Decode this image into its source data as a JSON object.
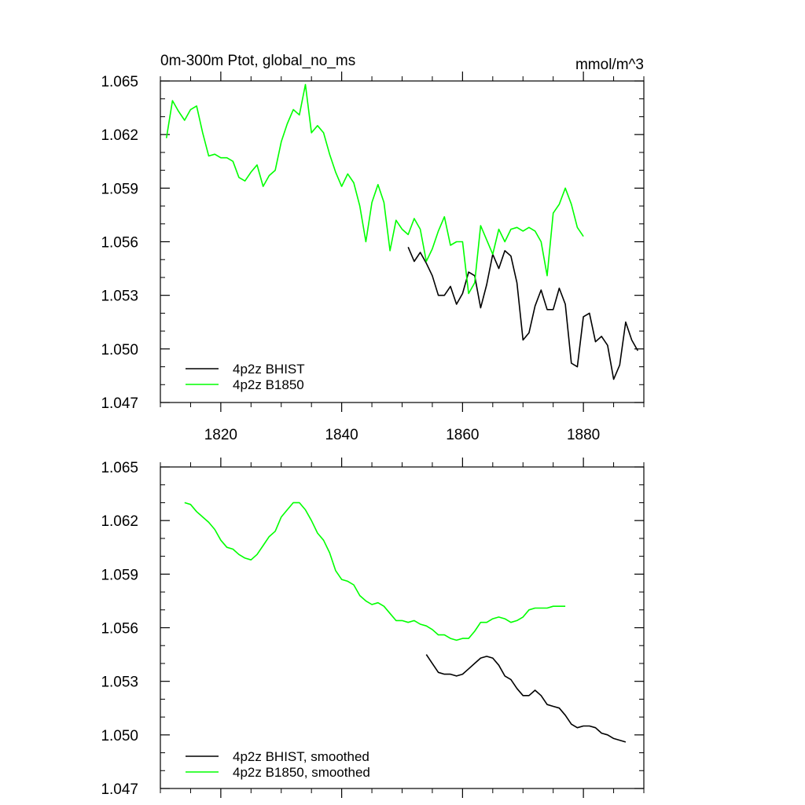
{
  "chart_data": [
    {
      "type": "line",
      "title": "0m-300m Ptot, global_no_ms",
      "units": "mmol/m^3",
      "xlim": [
        1810,
        1890
      ],
      "ylim": [
        1.047,
        1.065
      ],
      "yticks": [
        "1.047",
        "1.050",
        "1.053",
        "1.056",
        "1.059",
        "1.062",
        "1.065"
      ],
      "xticks": [
        "1820",
        "1840",
        "1860",
        "1880"
      ],
      "legend_position": "bottom-left",
      "series": [
        {
          "name": "4p2z BHIST",
          "color": "#000000",
          "x": [
            1851,
            1852,
            1853,
            1854,
            1855,
            1856,
            1857,
            1858,
            1859,
            1860,
            1861,
            1862,
            1863,
            1864,
            1865,
            1866,
            1867,
            1868,
            1869,
            1870,
            1871,
            1872,
            1873,
            1874,
            1875,
            1876,
            1877,
            1878,
            1879,
            1880,
            1881,
            1882,
            1883,
            1884,
            1885,
            1886,
            1887,
            1888,
            1889
          ],
          "y": [
            1.0557,
            1.0549,
            1.0554,
            1.0548,
            1.0541,
            1.053,
            1.053,
            1.0535,
            1.0525,
            1.0531,
            1.0543,
            1.0541,
            1.0523,
            1.0536,
            1.0553,
            1.0545,
            1.0555,
            1.0552,
            1.0537,
            1.0505,
            1.0509,
            1.0524,
            1.0533,
            1.0522,
            1.0522,
            1.0534,
            1.0525,
            1.0492,
            1.049,
            1.0518,
            1.052,
            1.0504,
            1.0507,
            1.0502,
            1.0483,
            1.0491,
            1.0515,
            1.0505,
            1.0499
          ]
        },
        {
          "name": "4p2z B1850",
          "color": "#00ff00",
          "x": [
            1811,
            1812,
            1813,
            1814,
            1815,
            1816,
            1817,
            1818,
            1819,
            1820,
            1821,
            1822,
            1823,
            1824,
            1825,
            1826,
            1827,
            1828,
            1829,
            1830,
            1831,
            1832,
            1833,
            1834,
            1835,
            1836,
            1837,
            1838,
            1839,
            1840,
            1841,
            1842,
            1843,
            1844,
            1845,
            1846,
            1847,
            1848,
            1849,
            1850,
            1851,
            1852,
            1853,
            1854,
            1855,
            1856,
            1857,
            1858,
            1859,
            1860,
            1861,
            1862,
            1863,
            1864,
            1865,
            1866,
            1867,
            1868,
            1869,
            1870,
            1871,
            1872,
            1873,
            1874,
            1875,
            1876,
            1877,
            1878,
            1879,
            1880
          ],
          "y": [
            1.0618,
            1.0639,
            1.0633,
            1.0628,
            1.0634,
            1.0636,
            1.0621,
            1.0608,
            1.0609,
            1.0607,
            1.0607,
            1.0605,
            1.0596,
            1.0594,
            1.0599,
            1.0603,
            1.0591,
            1.0597,
            1.06,
            1.0616,
            1.0626,
            1.0634,
            1.0631,
            1.0648,
            1.0621,
            1.0625,
            1.0621,
            1.0609,
            1.0599,
            1.0591,
            1.0598,
            1.0593,
            1.058,
            1.056,
            1.0582,
            1.0592,
            1.0582,
            1.0555,
            1.0572,
            1.0567,
            1.0564,
            1.0573,
            1.0567,
            1.0549,
            1.0556,
            1.0566,
            1.0574,
            1.0558,
            1.056,
            1.056,
            1.0531,
            1.0537,
            1.0569,
            1.0561,
            1.0553,
            1.0567,
            1.056,
            1.0567,
            1.0568,
            1.0566,
            1.0568,
            1.0566,
            1.056,
            1.0541,
            1.0576,
            1.0581,
            1.059,
            1.0581,
            1.0568,
            1.0563
          ]
        }
      ]
    },
    {
      "type": "line",
      "title": "",
      "xlim": [
        1810,
        1890
      ],
      "ylim": [
        1.047,
        1.065
      ],
      "yticks": [
        "1.047",
        "1.050",
        "1.053",
        "1.056",
        "1.059",
        "1.062",
        "1.065"
      ],
      "xticks": [],
      "legend_position": "bottom-left",
      "series": [
        {
          "name": "4p2z BHIST, smoothed",
          "color": "#000000",
          "x": [
            1854,
            1855,
            1856,
            1857,
            1858,
            1859,
            1860,
            1861,
            1862,
            1863,
            1864,
            1865,
            1866,
            1867,
            1868,
            1869,
            1870,
            1871,
            1872,
            1873,
            1874,
            1875,
            1876,
            1877,
            1878,
            1879,
            1880,
            1881,
            1882,
            1883,
            1884,
            1885,
            1886,
            1887
          ],
          "y": [
            1.0545,
            1.054,
            1.0535,
            1.0534,
            1.0534,
            1.0533,
            1.0534,
            1.0537,
            1.054,
            1.0543,
            1.0544,
            1.0543,
            1.0539,
            1.0533,
            1.0531,
            1.0526,
            1.0522,
            1.0522,
            1.0525,
            1.0522,
            1.0517,
            1.0516,
            1.0515,
            1.0511,
            1.0506,
            1.0504,
            1.0505,
            1.0505,
            1.0504,
            1.0501,
            1.05,
            1.0498,
            1.0497,
            1.0496
          ]
        },
        {
          "name": "4p2z B1850, smoothed",
          "color": "#00ff00",
          "x": [
            1814,
            1815,
            1816,
            1817,
            1818,
            1819,
            1820,
            1821,
            1822,
            1823,
            1824,
            1825,
            1826,
            1827,
            1828,
            1829,
            1830,
            1831,
            1832,
            1833,
            1834,
            1835,
            1836,
            1837,
            1838,
            1839,
            1840,
            1841,
            1842,
            1843,
            1844,
            1845,
            1846,
            1847,
            1848,
            1849,
            1850,
            1851,
            1852,
            1853,
            1854,
            1855,
            1856,
            1857,
            1858,
            1859,
            1860,
            1861,
            1862,
            1863,
            1864,
            1865,
            1866,
            1867,
            1868,
            1869,
            1870,
            1871,
            1872,
            1873,
            1874,
            1875,
            1876,
            1877
          ],
          "y": [
            1.063,
            1.0629,
            1.0625,
            1.0622,
            1.0619,
            1.0615,
            1.0609,
            1.0605,
            1.0604,
            1.0601,
            1.0599,
            1.0598,
            1.0601,
            1.0606,
            1.0611,
            1.0614,
            1.0622,
            1.0626,
            1.063,
            1.063,
            1.0626,
            1.062,
            1.0613,
            1.0609,
            1.0602,
            1.0592,
            1.0587,
            1.0586,
            1.0584,
            1.0578,
            1.0575,
            1.0573,
            1.0574,
            1.0572,
            1.0568,
            1.0564,
            1.0564,
            1.0563,
            1.0564,
            1.0562,
            1.0561,
            1.0559,
            1.0556,
            1.0556,
            1.0554,
            1.0553,
            1.0554,
            1.0554,
            1.0558,
            1.0563,
            1.0563,
            1.0565,
            1.0566,
            1.0565,
            1.0563,
            1.0564,
            1.0566,
            1.057,
            1.0571,
            1.0571,
            1.0571,
            1.0572,
            1.0572,
            1.0572
          ]
        }
      ]
    }
  ]
}
